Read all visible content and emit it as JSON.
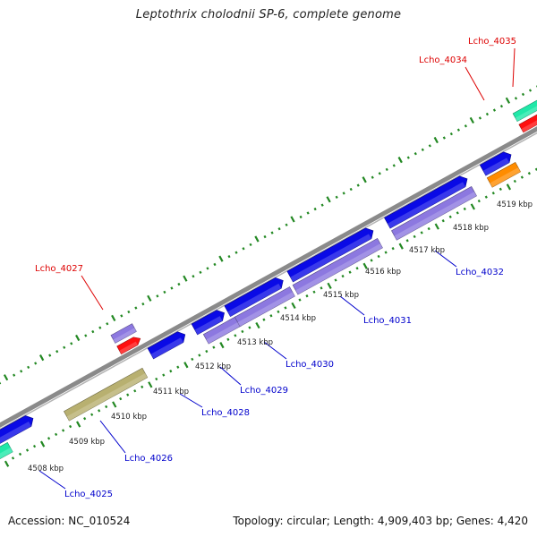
{
  "title": "Leptothrix cholodnii SP-6, complete genome",
  "footer": {
    "accession": "Accession: NC_010524",
    "topology": "Topology: circular; Length: 4,909,403 bp; Genes: 4,420"
  },
  "colors": {
    "backbone": "#888888",
    "tick": "#228822",
    "cds_blue": "#0a0ae6",
    "cds_lavender": "#8c78e0",
    "cds_khaki": "#b8b070",
    "cds_red": "#ff1010",
    "cds_orange": "#ff8c00",
    "cds_aqua": "#20e8a8",
    "cds_olive": "#6a8a20",
    "label_red": "#dd0000",
    "label_blue": "#0000cc"
  },
  "scale_labels": [
    "4508 kbp",
    "4509 kbp",
    "4510 kbp",
    "4511 kbp",
    "4512 kbp",
    "4513 kbp",
    "4514 kbp",
    "4515 kbp",
    "4516 kbp",
    "4517 kbp",
    "4518 kbp",
    "4519 kbp"
  ],
  "gene_labels_top": [
    "Lcho_4027",
    "Lcho_4034",
    "Lcho_4035"
  ],
  "gene_labels_bottom": [
    "Lcho_4025",
    "Lcho_4026",
    "Lcho_4028",
    "Lcho_4029",
    "Lcho_4030",
    "Lcho_4031",
    "Lcho_4032"
  ]
}
